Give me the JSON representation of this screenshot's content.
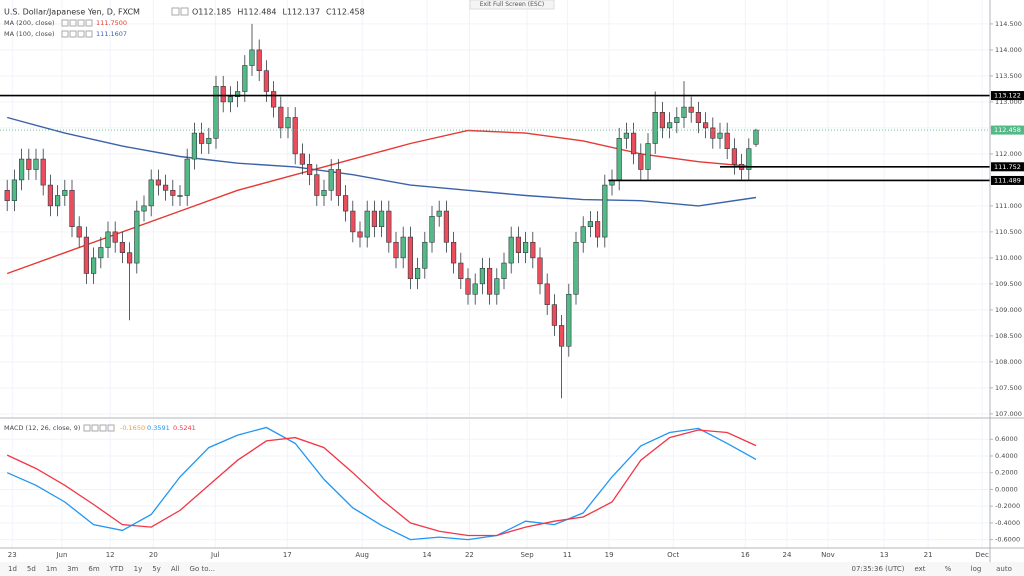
{
  "ui": {
    "exit_button": "Exit Full Screen (ESC)",
    "ranges": [
      "1d",
      "5d",
      "1m",
      "3m",
      "6m",
      "YTD",
      "1y",
      "5y",
      "All",
      "Go to..."
    ],
    "clock": "07:35:36 (UTC)",
    "options": [
      "ext",
      "%",
      "log",
      "auto"
    ]
  },
  "chart_data": [
    {
      "type": "candlestick",
      "title": "U.S. Dollar/Japanese Yen, D, FXCM",
      "legend_ohlc": [
        "O112.185",
        "H112.484",
        "L112.137",
        "C112.458"
      ],
      "up_color": "#53b987",
      "down_color": "#eb4d5c",
      "open": [
        111.3,
        111.1,
        111.5,
        111.9,
        111.7,
        111.9,
        111.4,
        111.0,
        111.2,
        111.3,
        110.6,
        110.4,
        109.7,
        110.0,
        110.2,
        110.5,
        110.3,
        110.1,
        109.9,
        110.9,
        111.0,
        111.5,
        111.4,
        111.3,
        111.2,
        111.2,
        111.9,
        112.4,
        112.2,
        112.3,
        113.3,
        113.0,
        113.1,
        113.2,
        113.7,
        114.0,
        113.6,
        113.2,
        112.9,
        112.5,
        112.7,
        112.0,
        111.8,
        111.6,
        111.2,
        111.3,
        111.7,
        111.2,
        110.9,
        110.5,
        110.4,
        110.9,
        110.6,
        110.9,
        110.3,
        110.0,
        110.4,
        109.6,
        109.8,
        110.3,
        110.8,
        110.9,
        110.3,
        109.9,
        109.6,
        109.3,
        109.5,
        109.8,
        109.3,
        109.6,
        109.9,
        110.4,
        110.1,
        110.3,
        110.0,
        109.5,
        109.1,
        108.7,
        108.3,
        109.3,
        110.3,
        110.6,
        110.7,
        110.4,
        111.4,
        111.5,
        112.3,
        112.4,
        112.0,
        111.7,
        112.2,
        112.8,
        112.5,
        112.6,
        112.7,
        112.9,
        112.8,
        112.6,
        112.5,
        112.3,
        112.4,
        112.1,
        111.8,
        111.7,
        112.185
      ],
      "high": [
        111.5,
        111.7,
        112.1,
        112.1,
        112.1,
        112.1,
        111.6,
        111.4,
        111.5,
        111.5,
        110.8,
        110.6,
        110.2,
        110.4,
        110.7,
        110.7,
        110.5,
        110.3,
        111.1,
        111.2,
        111.7,
        111.7,
        111.6,
        111.5,
        111.4,
        112.1,
        112.6,
        112.6,
        112.5,
        113.5,
        113.5,
        113.3,
        113.4,
        113.9,
        114.5,
        114.2,
        113.8,
        113.4,
        113.1,
        112.9,
        112.9,
        112.2,
        112.0,
        111.8,
        111.5,
        111.9,
        111.9,
        111.4,
        111.1,
        110.7,
        111.1,
        111.1,
        111.1,
        111.1,
        110.5,
        110.6,
        110.6,
        110.0,
        110.5,
        111.0,
        111.1,
        111.1,
        110.5,
        110.1,
        109.8,
        109.7,
        110.0,
        110.0,
        109.8,
        110.1,
        110.6,
        110.6,
        110.5,
        110.5,
        110.2,
        109.7,
        109.3,
        108.9,
        109.5,
        110.5,
        110.8,
        110.9,
        110.9,
        111.6,
        111.7,
        112.5,
        112.6,
        112.6,
        112.2,
        112.4,
        113.2,
        113.0,
        112.8,
        112.9,
        113.4,
        113.1,
        113.0,
        112.8,
        112.7,
        112.6,
        112.6,
        112.3,
        112.0,
        112.3,
        112.484
      ],
      "low": [
        110.9,
        110.9,
        111.3,
        111.5,
        111.5,
        111.2,
        110.8,
        110.8,
        111.0,
        110.4,
        110.2,
        109.5,
        109.5,
        109.8,
        110.0,
        110.1,
        109.9,
        108.8,
        109.7,
        110.7,
        110.8,
        111.2,
        111.1,
        111.0,
        111.0,
        111.0,
        111.7,
        112.0,
        112.0,
        112.1,
        112.8,
        112.8,
        112.9,
        113.0,
        113.5,
        113.4,
        113.0,
        112.7,
        112.3,
        112.3,
        111.8,
        111.6,
        111.4,
        111.0,
        111.0,
        111.1,
        111.0,
        110.7,
        110.3,
        110.2,
        110.2,
        110.4,
        110.4,
        110.1,
        109.8,
        109.8,
        109.4,
        109.4,
        109.6,
        110.1,
        110.6,
        110.1,
        109.7,
        109.4,
        109.1,
        109.1,
        109.3,
        109.1,
        109.1,
        109.4,
        109.7,
        109.9,
        109.9,
        109.8,
        109.3,
        108.9,
        108.5,
        107.3,
        108.1,
        109.1,
        110.1,
        110.4,
        110.2,
        110.2,
        111.2,
        111.3,
        112.1,
        111.8,
        111.5,
        111.5,
        112.0,
        112.3,
        112.3,
        112.4,
        112.5,
        112.6,
        112.4,
        112.3,
        112.1,
        112.1,
        111.9,
        111.6,
        111.5,
        111.5,
        112.137
      ],
      "close": [
        111.1,
        111.5,
        111.9,
        111.7,
        111.9,
        111.4,
        111.0,
        111.2,
        111.3,
        110.6,
        110.4,
        109.7,
        110.0,
        110.2,
        110.5,
        110.3,
        110.1,
        109.9,
        110.9,
        111.0,
        111.5,
        111.4,
        111.3,
        111.2,
        111.2,
        111.9,
        112.4,
        112.2,
        112.3,
        113.3,
        113.0,
        113.1,
        113.2,
        113.7,
        114.0,
        113.6,
        113.2,
        112.9,
        112.5,
        112.7,
        112.0,
        111.8,
        111.6,
        111.2,
        111.3,
        111.7,
        111.2,
        110.9,
        110.5,
        110.4,
        110.9,
        110.6,
        110.9,
        110.3,
        110.0,
        110.4,
        109.6,
        109.8,
        110.3,
        110.8,
        110.9,
        110.3,
        109.9,
        109.6,
        109.3,
        109.5,
        109.8,
        109.3,
        109.6,
        109.9,
        110.4,
        110.1,
        110.3,
        110.0,
        109.5,
        109.1,
        108.7,
        108.3,
        109.3,
        110.3,
        110.6,
        110.7,
        110.4,
        111.4,
        111.5,
        112.3,
        112.4,
        112.0,
        111.7,
        112.2,
        112.8,
        112.5,
        112.6,
        112.7,
        112.9,
        112.8,
        112.6,
        112.5,
        112.3,
        112.4,
        112.1,
        111.8,
        111.7,
        112.1,
        112.458
      ],
      "xlim": [
        -1,
        136.5
      ],
      "xticks": [
        {
          "value": 0.7,
          "label": "23"
        },
        {
          "value": 7.6,
          "label": "Jun"
        },
        {
          "value": 14.3,
          "label": "12"
        },
        {
          "value": 20.3,
          "label": "20"
        },
        {
          "value": 28.9,
          "label": "Jul"
        },
        {
          "value": 38.9,
          "label": "17"
        },
        {
          "value": 49.3,
          "label": "Aug"
        },
        {
          "value": 58.3,
          "label": "14"
        },
        {
          "value": 64.2,
          "label": "22"
        },
        {
          "value": 72.2,
          "label": "Sep"
        },
        {
          "value": 77.8,
          "label": "11"
        },
        {
          "value": 83.6,
          "label": "19"
        },
        {
          "value": 92.5,
          "label": "Oct"
        },
        {
          "value": 102.5,
          "label": "16"
        },
        {
          "value": 108.3,
          "label": "24"
        },
        {
          "value": 114,
          "label": "Nov"
        },
        {
          "value": 121.8,
          "label": "13"
        },
        {
          "value": 127.9,
          "label": "21"
        },
        {
          "value": 135.4,
          "label": "Dec"
        }
      ],
      "ylim": [
        106.92,
        114.96
      ],
      "yticks": [
        {
          "value": 107,
          "label": "107.000"
        },
        {
          "value": 107.5,
          "label": "107.500"
        },
        {
          "value": 108,
          "label": "108.000"
        },
        {
          "value": 108.5,
          "label": "108.500"
        },
        {
          "value": 109,
          "label": "109.000"
        },
        {
          "value": 109.5,
          "label": "109.500"
        },
        {
          "value": 110,
          "label": "110.000"
        },
        {
          "value": 110.5,
          "label": "110.500"
        },
        {
          "value": 111,
          "label": "111.000"
        },
        {
          "value": 111.5,
          "label": "111.500"
        },
        {
          "value": 112,
          "label": "112.000"
        },
        {
          "value": 112.5,
          "label": "112.500"
        },
        {
          "value": 113,
          "label": "113.000"
        },
        {
          "value": 113.5,
          "label": "113.500"
        },
        {
          "value": 114,
          "label": "114.000"
        },
        {
          "value": 114.5,
          "label": "114.500"
        }
      ],
      "series": [
        {
          "name": "MA (200, close)",
          "last_label": "111.7500",
          "color": "#e53935",
          "x": [
            0,
            8,
            16,
            24,
            32,
            40,
            48,
            56,
            64,
            72,
            80,
            88,
            96,
            104
          ],
          "values": [
            109.7,
            110.1,
            110.5,
            110.9,
            111.3,
            111.6,
            111.9,
            112.2,
            112.45,
            112.4,
            112.25,
            112.0,
            111.85,
            111.75
          ]
        },
        {
          "name": "MA (100, close)",
          "last_label": "111.1607",
          "color": "#3c63a8",
          "x": [
            0,
            8,
            16,
            24,
            32,
            40,
            48,
            56,
            64,
            72,
            80,
            88,
            96,
            104
          ],
          "values": [
            112.7,
            112.4,
            112.15,
            111.95,
            111.82,
            111.75,
            111.6,
            111.4,
            111.3,
            111.2,
            111.12,
            111.1,
            111.0,
            111.1607
          ]
        }
      ],
      "levels": [
        {
          "value": 113.122,
          "label": "113.122",
          "from": -1
        },
        {
          "value": 111.752,
          "label": "111.752",
          "from": 99
        },
        {
          "value": 111.489,
          "label": "111.489",
          "from": 83.5
        }
      ],
      "last_price": {
        "value": 112.458,
        "label": "112.458",
        "color": "#53b987"
      }
    },
    {
      "type": "line",
      "title": "MACD (12, 26, close, 9)",
      "histogram_label": "-0.1650",
      "ylim": [
        -0.7,
        0.83
      ],
      "yticks": [
        {
          "value": -0.6,
          "label": "-0.6000"
        },
        {
          "value": -0.4,
          "label": "-0.4000"
        },
        {
          "value": -0.2,
          "label": "-0.2000"
        },
        {
          "value": 0,
          "label": "0.0000"
        },
        {
          "value": 0.2,
          "label": "0.2000"
        },
        {
          "value": 0.4,
          "label": "0.4000"
        },
        {
          "value": 0.6,
          "label": "0.6000"
        }
      ],
      "series": [
        {
          "color": "#2196f3",
          "last_label": "0.3591",
          "x": [
            0,
            4,
            8,
            12,
            16,
            20,
            24,
            28,
            32,
            36,
            40,
            44,
            48,
            52,
            56,
            60,
            64,
            68,
            72,
            76,
            80,
            84,
            88,
            92,
            96,
            100,
            104
          ],
          "values": [
            0.2,
            0.05,
            -0.15,
            -0.42,
            -0.49,
            -0.3,
            0.15,
            0.5,
            0.65,
            0.74,
            0.55,
            0.12,
            -0.22,
            -0.43,
            -0.6,
            -0.57,
            -0.6,
            -0.55,
            -0.38,
            -0.42,
            -0.28,
            0.15,
            0.52,
            0.68,
            0.73,
            0.55,
            0.3591
          ]
        },
        {
          "color": "#f23645",
          "last_label": "0.5241",
          "x": [
            0,
            4,
            8,
            12,
            16,
            20,
            24,
            28,
            32,
            36,
            40,
            44,
            48,
            52,
            56,
            60,
            64,
            68,
            72,
            76,
            80,
            84,
            88,
            92,
            96,
            100,
            104
          ],
          "values": [
            0.41,
            0.25,
            0.05,
            -0.18,
            -0.42,
            -0.45,
            -0.25,
            0.05,
            0.35,
            0.58,
            0.62,
            0.5,
            0.2,
            -0.12,
            -0.4,
            -0.5,
            -0.55,
            -0.55,
            -0.45,
            -0.38,
            -0.33,
            -0.15,
            0.35,
            0.62,
            0.71,
            0.68,
            0.5241
          ]
        }
      ]
    }
  ]
}
